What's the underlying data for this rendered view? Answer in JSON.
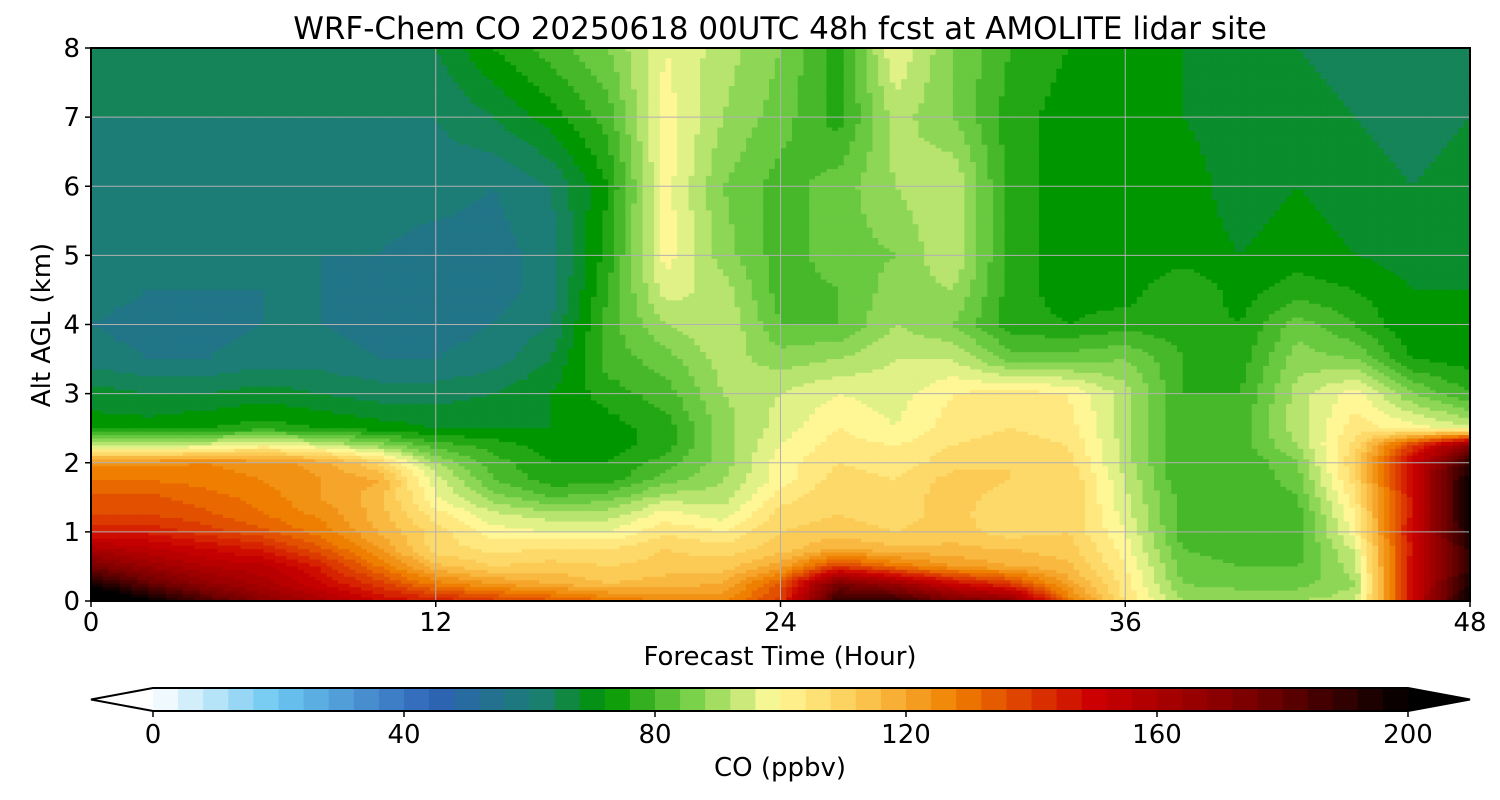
{
  "chart_data": {
    "type": "heatmap",
    "title": "WRF-Chem CO  20250618 00UTC 48h fcst at AMOLITE lidar site",
    "xlabel": "Forecast Time (Hour)",
    "ylabel": "Alt AGL (km)",
    "xlim": [
      0,
      48
    ],
    "ylim": [
      0,
      8
    ],
    "xticks": [
      "0",
      "12",
      "24",
      "36",
      "48"
    ],
    "xtick_values": [
      0,
      12,
      24,
      36,
      48
    ],
    "yticks": [
      "0",
      "1",
      "2",
      "3",
      "4",
      "5",
      "6",
      "7",
      "8"
    ],
    "ytick_values": [
      0,
      1,
      2,
      3,
      4,
      5,
      6,
      7,
      8
    ],
    "grid": true,
    "x": [
      0,
      2,
      4,
      6,
      8,
      10,
      12,
      14,
      16,
      18,
      20,
      22,
      24,
      26,
      28,
      30,
      32,
      34,
      36,
      38,
      40,
      42,
      44,
      46,
      48
    ],
    "y": [
      0,
      0.25,
      0.5,
      0.75,
      1,
      1.25,
      1.5,
      1.75,
      2,
      2.25,
      2.5,
      3,
      3.5,
      4,
      4.5,
      5,
      6,
      7,
      8
    ],
    "z": [
      [
        215,
        200,
        185,
        170,
        160,
        150,
        145,
        140,
        135,
        130,
        125,
        125,
        140,
        190,
        190,
        175,
        170,
        130,
        105,
        90,
        90,
        90,
        92,
        150,
        200
      ],
      [
        195,
        180,
        168,
        160,
        150,
        140,
        128,
        122,
        118,
        114,
        116,
        118,
        135,
        175,
        165,
        150,
        140,
        120,
        104,
        86,
        84,
        84,
        90,
        150,
        195
      ],
      [
        175,
        165,
        158,
        155,
        145,
        130,
        115,
        110,
        112,
        110,
        112,
        112,
        120,
        140,
        130,
        122,
        118,
        115,
        102,
        84,
        82,
        82,
        92,
        150,
        190
      ],
      [
        160,
        155,
        150,
        145,
        135,
        122,
        108,
        105,
        106,
        106,
        110,
        108,
        112,
        118,
        115,
        115,
        114,
        112,
        100,
        82,
        80,
        80,
        95,
        148,
        192
      ],
      [
        145,
        145,
        140,
        135,
        128,
        118,
        108,
        100,
        98,
        98,
        105,
        102,
        110,
        112,
        110,
        112,
        108,
        110,
        98,
        80,
        80,
        80,
        100,
        150,
        196
      ],
      [
        138,
        138,
        135,
        130,
        125,
        116,
        104,
        95,
        92,
        92,
        100,
        96,
        108,
        110,
        108,
        112,
        106,
        110,
        96,
        80,
        78,
        80,
        102,
        148,
        200
      ],
      [
        135,
        135,
        132,
        128,
        122,
        116,
        98,
        88,
        82,
        84,
        92,
        92,
        104,
        110,
        108,
        112,
        108,
        110,
        95,
        80,
        78,
        82,
        105,
        148,
        200
      ],
      [
        130,
        130,
        128,
        126,
        122,
        118,
        96,
        82,
        76,
        76,
        84,
        90,
        100,
        108,
        106,
        112,
        110,
        110,
        94,
        78,
        78,
        84,
        108,
        150,
        198
      ],
      [
        125,
        125,
        126,
        124,
        120,
        110,
        90,
        80,
        74,
        74,
        80,
        88,
        100,
        106,
        104,
        108,
        110,
        108,
        92,
        78,
        78,
        86,
        110,
        152,
        190
      ],
      [
        95,
        92,
        96,
        100,
        95,
        88,
        80,
        76,
        72,
        72,
        76,
        88,
        98,
        104,
        102,
        106,
        108,
        106,
        92,
        78,
        80,
        90,
        108,
        140,
        170
      ],
      [
        72,
        72,
        74,
        76,
        74,
        72,
        70,
        70,
        70,
        72,
        76,
        88,
        96,
        102,
        98,
        104,
        106,
        104,
        92,
        78,
        80,
        92,
        104,
        100,
        95
      ],
      [
        68,
        66,
        66,
        68,
        66,
        64,
        64,
        66,
        70,
        76,
        80,
        90,
        94,
        98,
        96,
        102,
        104,
        102,
        92,
        78,
        78,
        92,
        100,
        86,
        78
      ],
      [
        60,
        58,
        58,
        60,
        60,
        58,
        58,
        60,
        66,
        80,
        84,
        92,
        88,
        90,
        94,
        94,
        84,
        84,
        86,
        78,
        76,
        88,
        86,
        74,
        72
      ],
      [
        58,
        56,
        56,
        58,
        58,
        56,
        56,
        58,
        62,
        80,
        90,
        94,
        82,
        82,
        90,
        86,
        76,
        74,
        76,
        76,
        74,
        84,
        78,
        70,
        70
      ],
      [
        60,
        58,
        58,
        58,
        58,
        56,
        56,
        56,
        60,
        78,
        96,
        92,
        80,
        82,
        88,
        90,
        76,
        72,
        72,
        78,
        72,
        76,
        74,
        70,
        70
      ],
      [
        60,
        60,
        58,
        58,
        58,
        58,
        56,
        56,
        60,
        76,
        100,
        88,
        80,
        84,
        86,
        94,
        76,
        72,
        70,
        72,
        70,
        72,
        70,
        68,
        70
      ],
      [
        62,
        60,
        60,
        60,
        60,
        60,
        60,
        58,
        62,
        74,
        100,
        86,
        80,
        84,
        90,
        94,
        76,
        72,
        70,
        72,
        68,
        70,
        68,
        66,
        68
      ],
      [
        62,
        62,
        62,
        62,
        62,
        62,
        62,
        66,
        72,
        80,
        100,
        90,
        84,
        76,
        92,
        86,
        76,
        72,
        72,
        70,
        68,
        68,
        66,
        64,
        66
      ],
      [
        64,
        64,
        64,
        64,
        64,
        64,
        66,
        74,
        80,
        86,
        98,
        92,
        86,
        76,
        98,
        86,
        78,
        74,
        72,
        70,
        68,
        66,
        64,
        64,
        66
      ]
    ]
  },
  "colorbar": {
    "label": "CO  (ppbv)",
    "min": 0,
    "max": 200,
    "extend": "both",
    "ticks": [
      "0",
      "40",
      "80",
      "120",
      "160",
      "200"
    ],
    "tick_values": [
      0,
      40,
      80,
      120,
      160,
      200
    ],
    "stops": [
      {
        "v": 0,
        "c": "#ffffff"
      },
      {
        "v": 20,
        "c": "#6ac6f0"
      },
      {
        "v": 45,
        "c": "#2d62b5"
      },
      {
        "v": 62,
        "c": "#1a7f6e"
      },
      {
        "v": 72,
        "c": "#009600"
      },
      {
        "v": 86,
        "c": "#7ad14a"
      },
      {
        "v": 99,
        "c": "#fffa9a"
      },
      {
        "v": 112,
        "c": "#fccb55"
      },
      {
        "v": 128,
        "c": "#ef7f00"
      },
      {
        "v": 150,
        "c": "#cc0000"
      },
      {
        "v": 175,
        "c": "#7a0000"
      },
      {
        "v": 200,
        "c": "#000000"
      }
    ]
  }
}
